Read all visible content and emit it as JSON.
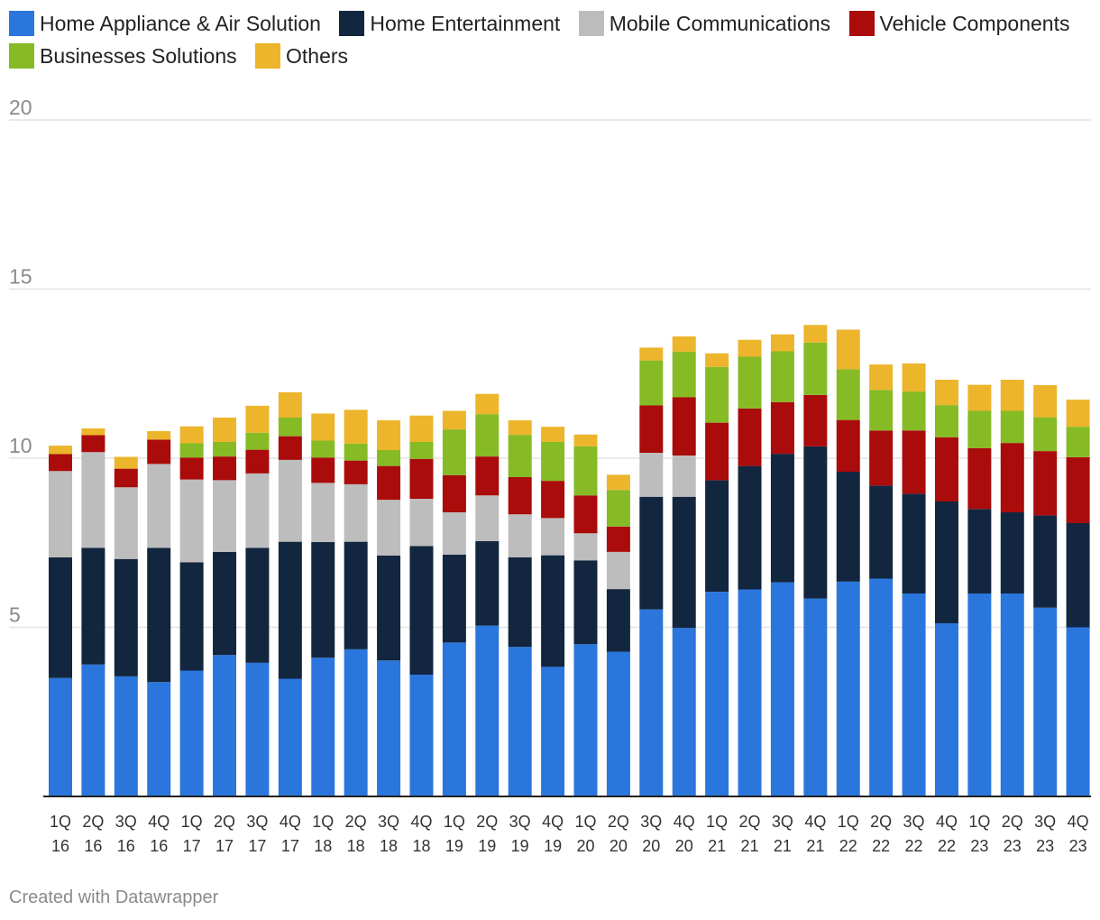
{
  "chart_data": {
    "type": "bar",
    "stacked": true,
    "title": "",
    "xlabel": "",
    "ylabel": "",
    "ylim": [
      0,
      20
    ],
    "yticks": [
      5,
      10,
      15,
      20
    ],
    "grid": true,
    "legend_position": "top",
    "categories": [
      [
        "1Q",
        "16"
      ],
      [
        "2Q",
        "16"
      ],
      [
        "3Q",
        "16"
      ],
      [
        "4Q",
        "16"
      ],
      [
        "1Q",
        "17"
      ],
      [
        "2Q",
        "17"
      ],
      [
        "3Q",
        "17"
      ],
      [
        "4Q",
        "17"
      ],
      [
        "1Q",
        "18"
      ],
      [
        "2Q",
        "18"
      ],
      [
        "3Q",
        "18"
      ],
      [
        "4Q",
        "18"
      ],
      [
        "1Q",
        "19"
      ],
      [
        "2Q",
        "19"
      ],
      [
        "3Q",
        "19"
      ],
      [
        "4Q",
        "19"
      ],
      [
        "1Q",
        "20"
      ],
      [
        "2Q",
        "20"
      ],
      [
        "3Q",
        "20"
      ],
      [
        "4Q",
        "20"
      ],
      [
        "1Q",
        "21"
      ],
      [
        "2Q",
        "21"
      ],
      [
        "3Q",
        "21"
      ],
      [
        "4Q",
        "21"
      ],
      [
        "1Q",
        "22"
      ],
      [
        "2Q",
        "22"
      ],
      [
        "3Q",
        "22"
      ],
      [
        "4Q",
        "22"
      ],
      [
        "1Q",
        "23"
      ],
      [
        "2Q",
        "23"
      ],
      [
        "3Q",
        "23"
      ],
      [
        "4Q",
        "23"
      ]
    ],
    "series": [
      {
        "name": "Home Appliance & Air Solution",
        "color": "#2a76dd",
        "values": [
          3.5,
          3.9,
          3.55,
          3.38,
          3.72,
          4.18,
          3.95,
          3.48,
          4.1,
          4.35,
          4.02,
          3.6,
          4.55,
          5.05,
          4.42,
          3.83,
          4.5,
          4.28,
          5.53,
          4.98,
          6.05,
          6.12,
          6.33,
          5.85,
          6.35,
          6.44,
          6.0,
          5.12,
          6.0,
          6.0,
          5.58,
          5.0
        ]
      },
      {
        "name": "Home Entertainment",
        "color": "#12263f",
        "values": [
          3.57,
          3.45,
          3.47,
          3.97,
          3.2,
          3.05,
          3.4,
          4.05,
          3.42,
          3.18,
          3.1,
          3.8,
          2.6,
          2.5,
          2.65,
          3.3,
          2.48,
          1.85,
          3.33,
          3.88,
          3.3,
          3.65,
          3.8,
          4.5,
          3.25,
          2.75,
          2.95,
          3.6,
          2.5,
          2.4,
          2.73,
          3.08
        ]
      },
      {
        "name": "Mobile Communications",
        "color": "#bdbdbd",
        "values": [
          2.55,
          2.83,
          2.12,
          2.48,
          2.45,
          2.12,
          2.2,
          2.42,
          1.75,
          1.7,
          1.65,
          1.4,
          1.25,
          1.35,
          1.27,
          1.1,
          0.8,
          1.1,
          1.3,
          1.22,
          0,
          0,
          0,
          0,
          0,
          0,
          0,
          0,
          0,
          0,
          0,
          0
        ]
      },
      {
        "name": "Vehicle Components",
        "color": "#aa0b0b",
        "values": [
          0.5,
          0.5,
          0.55,
          0.72,
          0.65,
          0.7,
          0.7,
          0.7,
          0.75,
          0.7,
          1.0,
          1.18,
          1.1,
          1.15,
          1.1,
          1.1,
          1.12,
          0.75,
          1.4,
          1.72,
          1.7,
          1.7,
          1.53,
          1.52,
          1.53,
          1.63,
          1.87,
          1.9,
          1.8,
          2.05,
          1.9,
          1.95
        ]
      },
      {
        "name": "Businesses Solutions",
        "color": "#86bb25",
        "values": [
          0,
          0,
          0,
          0,
          0.42,
          0.43,
          0.5,
          0.55,
          0.5,
          0.5,
          0.47,
          0.5,
          1.35,
          1.25,
          1.25,
          1.15,
          1.45,
          1.08,
          1.33,
          1.35,
          1.65,
          1.53,
          1.5,
          1.55,
          1.5,
          1.2,
          1.15,
          0.95,
          1.1,
          0.95,
          1.0,
          0.9
        ]
      },
      {
        "name": "Others",
        "color": "#ecb52b",
        "values": [
          0.25,
          0.2,
          0.35,
          0.25,
          0.5,
          0.72,
          0.8,
          0.75,
          0.8,
          1.0,
          0.88,
          0.78,
          0.55,
          0.6,
          0.43,
          0.45,
          0.35,
          0.45,
          0.38,
          0.45,
          0.4,
          0.5,
          0.5,
          0.52,
          1.17,
          0.75,
          0.83,
          0.75,
          0.77,
          0.92,
          0.95,
          0.8
        ]
      }
    ]
  },
  "footer": {
    "credit": "Created with Datawrapper"
  }
}
